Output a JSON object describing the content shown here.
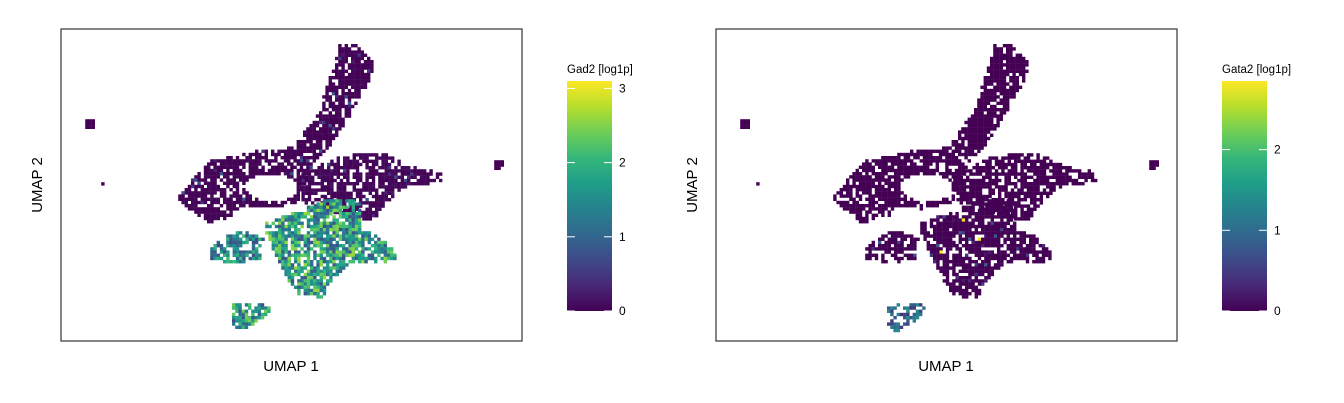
{
  "chart_data": [
    {
      "type": "scatter",
      "xlabel": "UMAP 1",
      "ylabel": "UMAP 2",
      "legend": {
        "title": "Gad2 [log1p]",
        "colormap": "viridis",
        "range": [
          0,
          3.1
        ],
        "ticks": [
          0,
          1,
          2,
          3
        ],
        "position": "right"
      },
      "grid": false,
      "regions": [
        {
          "label": "upper diagonal arm",
          "expression": 0.05
        },
        {
          "label": "central ring",
          "expression": 0.1
        },
        {
          "label": "right extension",
          "expression": 0.1
        },
        {
          "label": "lower central cluster",
          "expression": 1.7
        },
        {
          "label": "lower left wing",
          "expression": 1.4
        },
        {
          "label": "bottom islet",
          "expression": 1.6
        },
        {
          "label": "small outliers",
          "expression": 0.0
        }
      ]
    },
    {
      "type": "scatter",
      "xlabel": "UMAP 1",
      "ylabel": "UMAP 2",
      "legend": {
        "title": "Gata2 [log1p]",
        "colormap": "viridis",
        "range": [
          0,
          2.85
        ],
        "ticks": [
          0,
          1,
          2
        ],
        "position": "right"
      },
      "grid": false,
      "regions": [
        {
          "label": "upper diagonal arm",
          "expression": 0.0
        },
        {
          "label": "central ring",
          "expression": 0.0
        },
        {
          "label": "right extension",
          "expression": 0.0
        },
        {
          "label": "lower central cluster",
          "expression": 0.02
        },
        {
          "label": "lower left wing",
          "expression": 0.02
        },
        {
          "label": "bottom islet",
          "expression": 0.9
        },
        {
          "label": "small outliers",
          "expression": 0.0
        }
      ]
    }
  ]
}
